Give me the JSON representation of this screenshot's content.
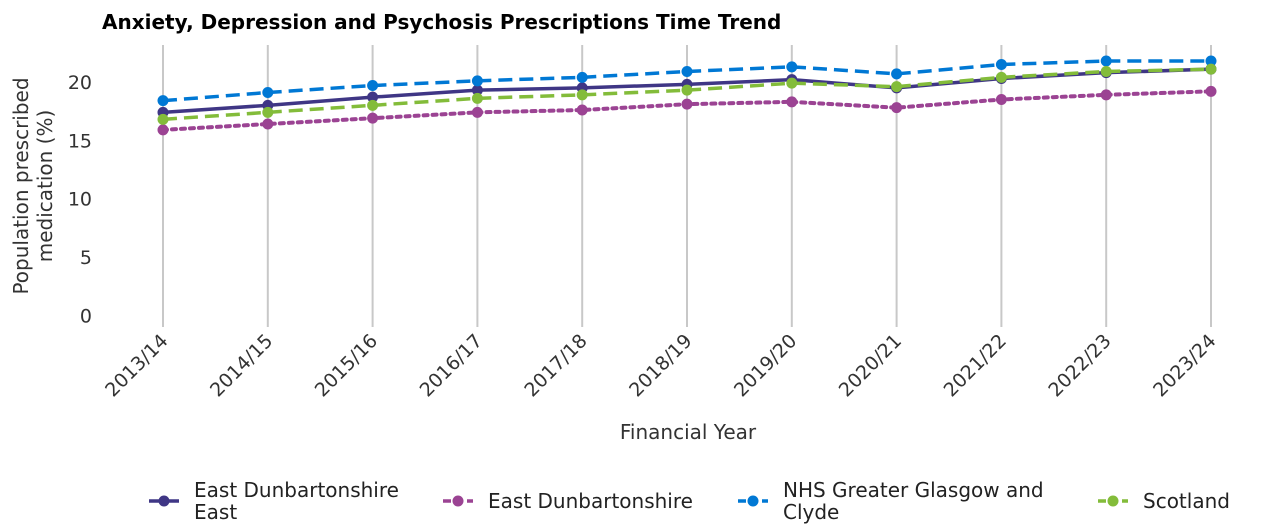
{
  "chart_data": {
    "type": "line",
    "title": "Anxiety, Depression and Psychosis Prescriptions Time Trend",
    "x_label": "Financial Year",
    "y_label": [
      "Population prescribed",
      "medication (%)"
    ],
    "categories": [
      "2013/14",
      "2014/15",
      "2015/16",
      "2016/17",
      "2017/18",
      "2018/19",
      "2019/20",
      "2020/21",
      "2021/22",
      "2022/23",
      "2023/24"
    ],
    "series": [
      {
        "name": "East Dunbartonshire East",
        "color": "#3f3685",
        "dash": "solid",
        "values": [
          17.4,
          18.0,
          18.7,
          19.3,
          19.5,
          19.8,
          20.2,
          19.5,
          20.3,
          20.8,
          21.1
        ]
      },
      {
        "name": "East Dunbartonshire",
        "color": "#9b4393",
        "dash": "dotted",
        "values": [
          15.9,
          16.4,
          16.9,
          17.4,
          17.6,
          18.1,
          18.3,
          17.8,
          18.5,
          18.9,
          19.2
        ]
      },
      {
        "name": "NHS Greater Glasgow and Clyde",
        "color": "#0078d4",
        "dash": "dashed",
        "values": [
          18.4,
          19.1,
          19.7,
          20.1,
          20.4,
          20.9,
          21.3,
          20.7,
          21.5,
          21.8,
          21.8
        ]
      },
      {
        "name": "Scotland",
        "color": "#83bc3a",
        "dash": "dashed",
        "values": [
          16.8,
          17.4,
          18.0,
          18.6,
          18.9,
          19.3,
          19.9,
          19.6,
          20.4,
          20.9,
          21.1
        ]
      }
    ],
    "ylim": [
      -1,
      23
    ],
    "yticks": [
      0,
      5,
      10,
      15,
      20
    ],
    "grid": "x",
    "legend": "bottom"
  }
}
